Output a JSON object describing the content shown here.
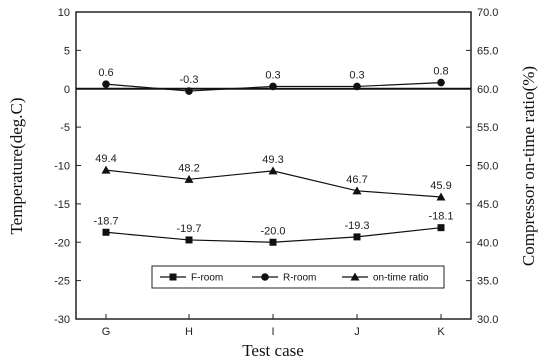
{
  "chart_data": {
    "type": "line",
    "x": [
      "G",
      "H",
      "I",
      "J",
      "K"
    ],
    "xlabel": "Test case",
    "ylabel": "Temperature(deg.C)",
    "y2label": "Compressor on-time ratio(%)",
    "ylim": [
      -30,
      10
    ],
    "y2lim": [
      30.0,
      70.0
    ],
    "yticks": [
      "10",
      "5",
      "0",
      "-5",
      "-10",
      "-15",
      "-20",
      "-25",
      "-30"
    ],
    "y2ticks": [
      "70.0",
      "65.0",
      "60.0",
      "55.0",
      "50.0",
      "45.0",
      "40.0",
      "35.0",
      "30.0"
    ],
    "series": [
      {
        "name": "F-room",
        "axis": "left",
        "marker": "square",
        "values": [
          -18.7,
          -19.7,
          -20.0,
          -19.3,
          -18.1
        ],
        "labels": [
          "-18.7",
          "-19.7",
          "-20.0",
          "-19.3",
          "-18.1"
        ]
      },
      {
        "name": "R-room",
        "axis": "left",
        "marker": "circle",
        "values": [
          0.6,
          -0.3,
          0.3,
          0.3,
          0.8
        ],
        "labels": [
          "0.6",
          "-0.3",
          "0.3",
          "0.3",
          "0.8"
        ]
      },
      {
        "name": "on-time ratio",
        "axis": "right",
        "marker": "triangle",
        "values": [
          49.4,
          48.2,
          49.3,
          46.7,
          45.9
        ],
        "labels": [
          "49.4",
          "48.2",
          "49.3",
          "46.7",
          "45.9"
        ]
      }
    ],
    "legend_position": "bottom-center",
    "grid": false
  }
}
